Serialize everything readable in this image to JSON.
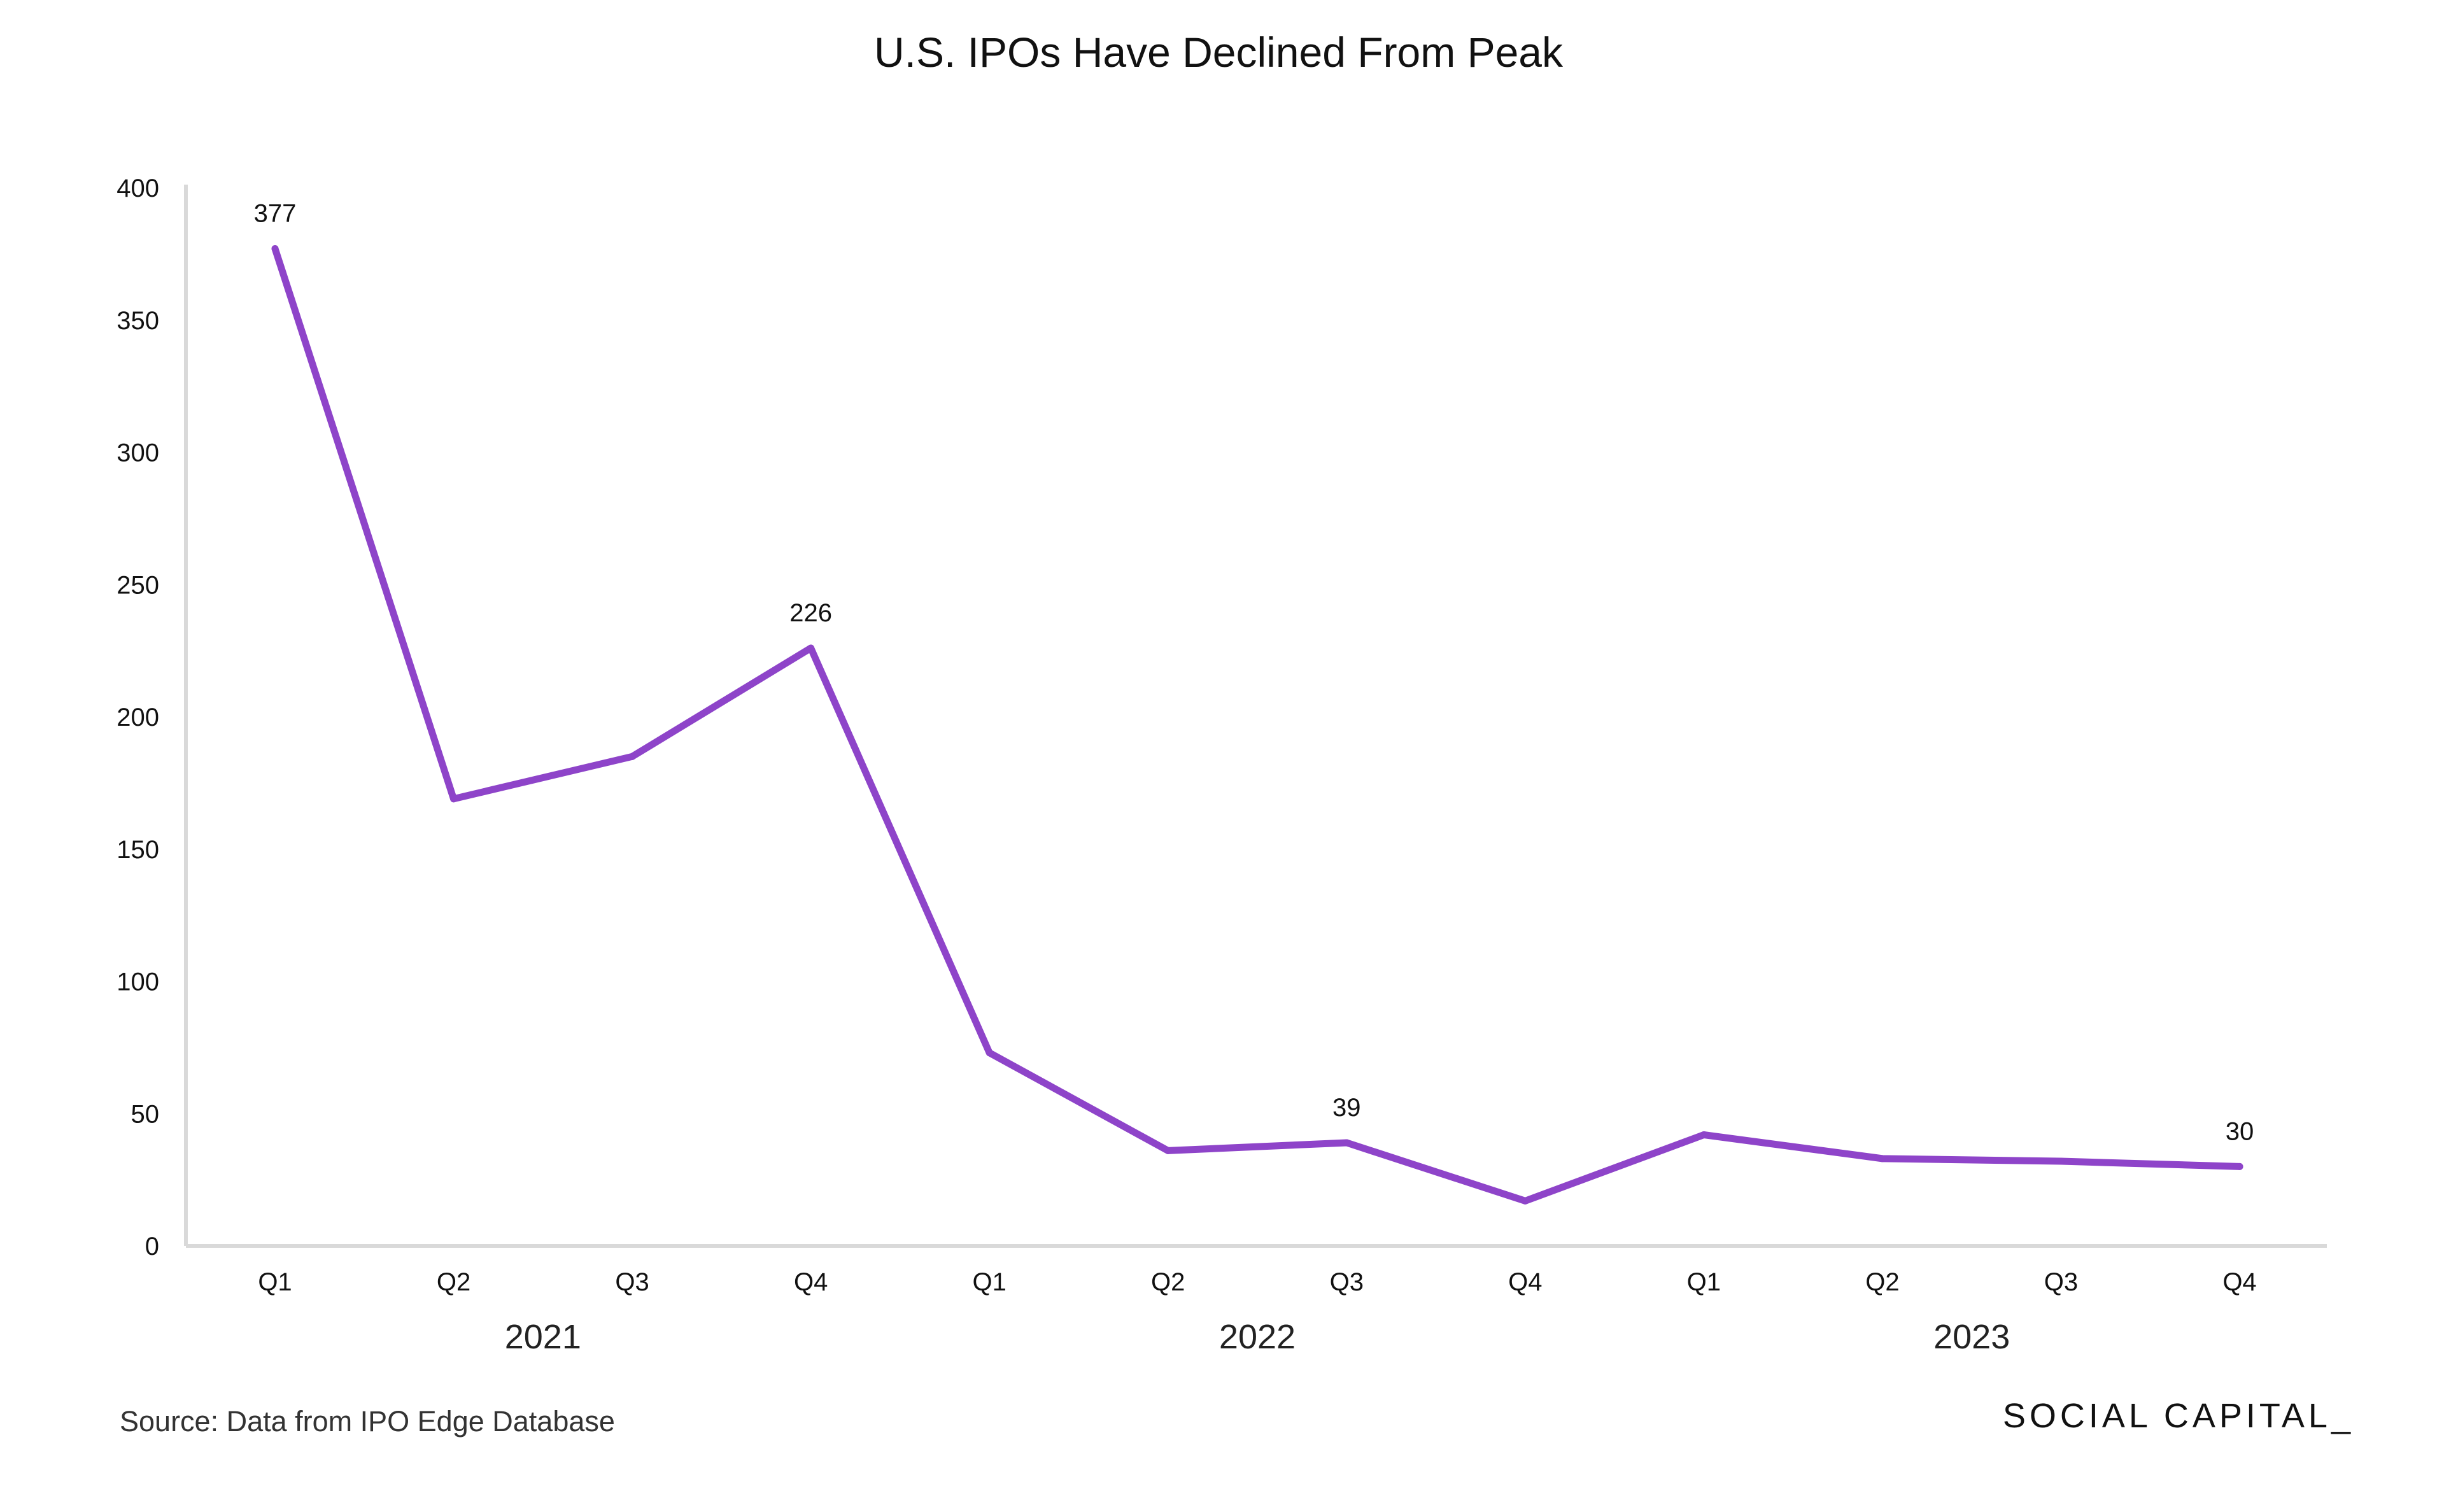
{
  "chart_data": {
    "type": "line",
    "title": "U.S. IPOs Have Declined From Peak",
    "categories": [
      "Q1",
      "Q2",
      "Q3",
      "Q4",
      "Q1",
      "Q2",
      "Q3",
      "Q4",
      "Q1",
      "Q2",
      "Q3",
      "Q4"
    ],
    "year_groups": [
      {
        "label": "2021",
        "start": 0,
        "end": 3
      },
      {
        "label": "2022",
        "start": 4,
        "end": 7
      },
      {
        "label": "2023",
        "start": 8,
        "end": 11
      }
    ],
    "series": [
      {
        "values": [
          377,
          169,
          185,
          226,
          73,
          36,
          39,
          17,
          42,
          33,
          32,
          30
        ],
        "color": "#8e44c9"
      }
    ],
    "data_labels": [
      {
        "index": 0,
        "text": "377"
      },
      {
        "index": 3,
        "text": "226"
      },
      {
        "index": 6,
        "text": "39"
      },
      {
        "index": 11,
        "text": "30"
      }
    ],
    "ylim": [
      0,
      400
    ],
    "yticks": [
      0,
      50,
      100,
      150,
      200,
      250,
      300,
      350,
      400
    ],
    "xlabel": "",
    "ylabel": "",
    "grid": false,
    "axis_color": "#d9d9d9"
  },
  "footer": {
    "source": "Source: Data from IPO Edge Database",
    "brand": "SOCIAL CAPITAL_"
  }
}
